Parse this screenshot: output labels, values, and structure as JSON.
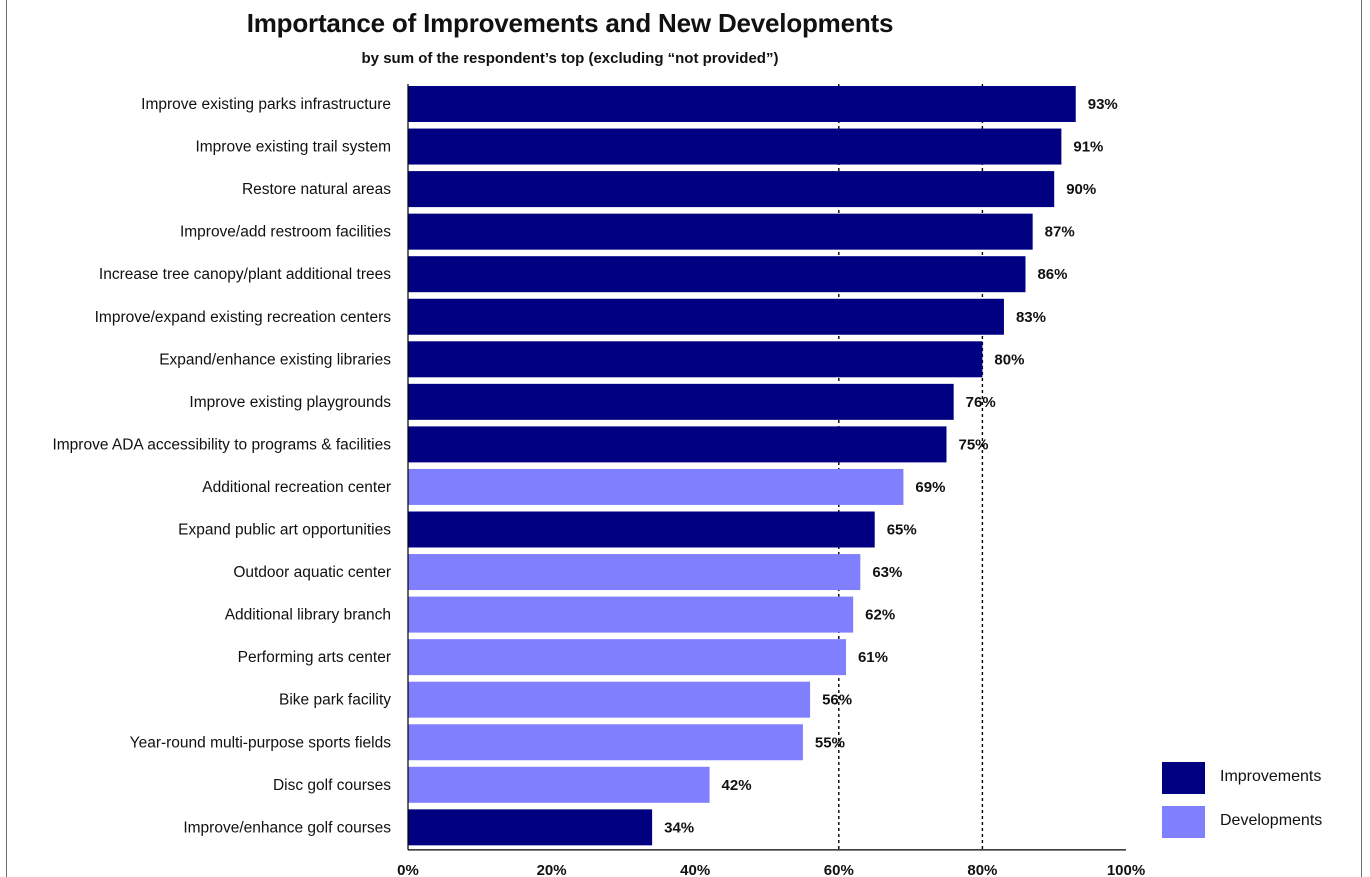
{
  "chart_data": {
    "type": "bar",
    "orientation": "horizontal",
    "title": "Importance of Improvements and New Developments",
    "subtitle": "by sum of the respondent’s top (excluding “not provided”)",
    "xlim": [
      0,
      100
    ],
    "x_ticks": [
      "0%",
      "20%",
      "40%",
      "60%",
      "80%",
      "100%"
    ],
    "reference_lines": [
      60,
      80
    ],
    "legend_position": "bottom-right",
    "colors": {
      "Improvements": "#000080",
      "Developments": "#8080ff"
    },
    "legend": [
      {
        "name": "Improvements",
        "color": "#000080"
      },
      {
        "name": "Developments",
        "color": "#8080ff"
      }
    ],
    "bars": [
      {
        "label": "Improve existing parks infrastructure",
        "value": 93,
        "value_label": "93%",
        "group": "Improvements"
      },
      {
        "label": "Improve existing trail system",
        "value": 91,
        "value_label": "91%",
        "group": "Improvements"
      },
      {
        "label": "Restore natural areas",
        "value": 90,
        "value_label": "90%",
        "group": "Improvements"
      },
      {
        "label": "Improve/add restroom facilities",
        "value": 87,
        "value_label": "87%",
        "group": "Improvements"
      },
      {
        "label": "Increase tree canopy/plant additional trees",
        "value": 86,
        "value_label": "86%",
        "group": "Improvements"
      },
      {
        "label": "Improve/expand existing recreation centers",
        "value": 83,
        "value_label": "83%",
        "group": "Improvements"
      },
      {
        "label": "Expand/enhance existing libraries",
        "value": 80,
        "value_label": "80%",
        "group": "Improvements"
      },
      {
        "label": "Improve existing playgrounds",
        "value": 76,
        "value_label": "76%",
        "group": "Improvements"
      },
      {
        "label": "Improve ADA accessibility to programs & facilities",
        "value": 75,
        "value_label": "75%",
        "group": "Improvements"
      },
      {
        "label": "Additional recreation center",
        "value": 69,
        "value_label": "69%",
        "group": "Developments"
      },
      {
        "label": "Expand public art opportunities",
        "value": 65,
        "value_label": "65%",
        "group": "Improvements"
      },
      {
        "label": "Outdoor aquatic center",
        "value": 63,
        "value_label": "63%",
        "group": "Developments"
      },
      {
        "label": "Additional library branch",
        "value": 62,
        "value_label": "62%",
        "group": "Developments"
      },
      {
        "label": "Performing arts center",
        "value": 61,
        "value_label": "61%",
        "group": "Developments"
      },
      {
        "label": "Bike park facility",
        "value": 56,
        "value_label": "56%",
        "group": "Developments"
      },
      {
        "label": "Year-round multi-purpose sports fields",
        "value": 55,
        "value_label": "55%",
        "group": "Developments"
      },
      {
        "label": "Disc golf courses",
        "value": 42,
        "value_label": "42%",
        "group": "Developments"
      },
      {
        "label": "Improve/enhance golf courses",
        "value": 34,
        "value_label": "34%",
        "group": "Improvements"
      }
    ]
  }
}
